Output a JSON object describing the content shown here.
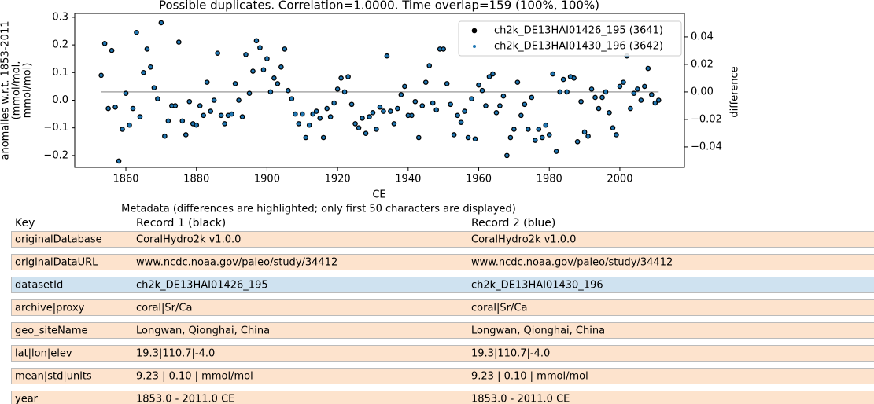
{
  "chart_data": {
    "type": "scatter",
    "title": "Possible duplicates. Correlation=1.0000. Time overlap=159 (100%, 100%)",
    "xlabel": "CE",
    "ylabel": [
      "anomalies w.r.t. 1853-2011",
      "(mmol/mol,",
      "mmol/mol)"
    ],
    "y2label": "difference",
    "xlim": [
      1845.5,
      2018.3
    ],
    "xticks": [
      1860,
      1880,
      1900,
      1920,
      1940,
      1960,
      1980,
      2000
    ],
    "ylim": [
      -0.243,
      0.314
    ],
    "yticks": [
      {
        "value": -0.2,
        "label": "−0.2"
      },
      {
        "value": -0.1,
        "label": "−0.1"
      },
      {
        "value": 0,
        "label": "0.0"
      },
      0.1,
      0.2,
      0.3
    ],
    "y2lim": [
      -0.0549,
      0.0571
    ],
    "y2ticks": [
      {
        "value": -0.04,
        "label": "−0.04"
      },
      {
        "value": -0.02,
        "label": "−0.02"
      },
      {
        "value": 0,
        "label": "0.00"
      },
      0.02,
      0.04
    ],
    "legend": "upper right",
    "x": [
      1853,
      1854,
      1855,
      1856,
      1857,
      1858,
      1859,
      1860,
      1861,
      1862,
      1863,
      1864,
      1865,
      1866,
      1867,
      1868,
      1869,
      1870,
      1871,
      1872,
      1873,
      1874,
      1875,
      1876,
      1877,
      1878,
      1879,
      1880,
      1881,
      1882,
      1883,
      1884,
      1885,
      1886,
      1887,
      1888,
      1889,
      1890,
      1891,
      1892,
      1893,
      1894,
      1895,
      1896,
      1897,
      1898,
      1899,
      1900,
      1901,
      1902,
      1903,
      1904,
      1905,
      1906,
      1907,
      1908,
      1909,
      1910,
      1911,
      1912,
      1913,
      1914,
      1915,
      1916,
      1917,
      1918,
      1919,
      1920,
      1921,
      1922,
      1923,
      1924,
      1925,
      1926,
      1927,
      1928,
      1929,
      1930,
      1931,
      1932,
      1933,
      1934,
      1935,
      1936,
      1937,
      1938,
      1939,
      1940,
      1941,
      1942,
      1943,
      1944,
      1945,
      1946,
      1947,
      1948,
      1949,
      1950,
      1951,
      1952,
      1953,
      1954,
      1955,
      1956,
      1957,
      1958,
      1959,
      1960,
      1961,
      1962,
      1963,
      1964,
      1965,
      1966,
      1967,
      1968,
      1969,
      1970,
      1971,
      1972,
      1973,
      1974,
      1975,
      1976,
      1977,
      1978,
      1979,
      1980,
      1981,
      1982,
      1983,
      1984,
      1985,
      1986,
      1987,
      1988,
      1989,
      1990,
      1991,
      1992,
      1993,
      1994,
      1995,
      1996,
      1997,
      1998,
      1999,
      2000,
      2001,
      2002,
      2003,
      2004,
      2005,
      2006,
      2007,
      2008,
      2009,
      2010,
      2011
    ],
    "series": [
      {
        "name": "ch2k_DE13HAI01426_195 (3641)",
        "color": "#000000",
        "values": [
          0.09,
          0.205,
          -0.03,
          0.18,
          -0.025,
          -0.22,
          -0.105,
          0.025,
          -0.09,
          -0.03,
          0.245,
          -0.06,
          0.1,
          0.185,
          0.12,
          0.045,
          0.005,
          0.28,
          -0.13,
          -0.075,
          -0.02,
          -0.02,
          0.21,
          -0.075,
          -0.125,
          -0.005,
          -0.085,
          -0.09,
          -0.02,
          -0.055,
          0.065,
          -0.04,
          0.0,
          0.17,
          -0.055,
          -0.085,
          -0.055,
          -0.05,
          0.06,
          0.0,
          -0.06,
          0.165,
          0.025,
          0.105,
          0.215,
          0.19,
          0.11,
          0.15,
          0.03,
          0.08,
          0.06,
          0.12,
          0.185,
          0.035,
          0.005,
          -0.05,
          -0.085,
          -0.05,
          -0.135,
          -0.09,
          -0.05,
          -0.04,
          -0.065,
          -0.135,
          -0.03,
          -0.06,
          -0.01,
          0.04,
          0.08,
          0.03,
          0.085,
          -0.015,
          -0.085,
          -0.1,
          -0.065,
          -0.12,
          -0.06,
          -0.045,
          -0.105,
          -0.025,
          -0.04,
          0.16,
          -0.04,
          -0.085,
          -0.03,
          0.02,
          0.05,
          -0.055,
          -0.055,
          -0.005,
          -0.135,
          -0.02,
          0.065,
          0.125,
          -0.01,
          -0.035,
          0.185,
          0.185,
          0.06,
          -0.015,
          -0.125,
          -0.055,
          -0.08,
          -0.04,
          -0.135,
          0.005,
          -0.14,
          0.055,
          0.035,
          -0.02,
          0.085,
          0.095,
          -0.045,
          -0.02,
          0.015,
          -0.2,
          -0.135,
          -0.105,
          0.065,
          -0.055,
          -0.015,
          -0.105,
          0.01,
          -0.145,
          -0.105,
          -0.135,
          -0.09,
          -0.125,
          0.095,
          -0.185,
          0.03,
          0.075,
          0.03,
          0.085,
          0.08,
          -0.15,
          -0.005,
          -0.115,
          -0.13,
          0.04,
          0.01,
          -0.03,
          0.01,
          0.03,
          -0.045,
          -0.1,
          -0.125,
          0.05,
          0.065,
          0.16,
          -0.03,
          0.025,
          0.04,
          0.0,
          0.05,
          0.115,
          0.02,
          -0.01,
          0.0
        ]
      },
      {
        "name": "ch2k_DE13HAI01430_196 (3642)",
        "color": "#1f77b4",
        "values": [
          0.09,
          0.205,
          -0.03,
          0.18,
          -0.025,
          -0.22,
          -0.105,
          0.025,
          -0.09,
          -0.03,
          0.245,
          -0.06,
          0.1,
          0.185,
          0.12,
          0.045,
          0.005,
          0.28,
          -0.13,
          -0.075,
          -0.02,
          -0.02,
          0.21,
          -0.075,
          -0.125,
          -0.005,
          -0.085,
          -0.09,
          -0.02,
          -0.055,
          0.065,
          -0.04,
          0.0,
          0.17,
          -0.055,
          -0.085,
          -0.055,
          -0.05,
          0.06,
          0.0,
          -0.06,
          0.165,
          0.025,
          0.105,
          0.215,
          0.19,
          0.11,
          0.15,
          0.03,
          0.08,
          0.06,
          0.12,
          0.185,
          0.035,
          0.005,
          -0.05,
          -0.085,
          -0.05,
          -0.135,
          -0.09,
          -0.05,
          -0.04,
          -0.065,
          -0.135,
          -0.03,
          -0.06,
          -0.01,
          0.04,
          0.08,
          0.03,
          0.085,
          -0.015,
          -0.085,
          -0.1,
          -0.065,
          -0.12,
          -0.06,
          -0.045,
          -0.105,
          -0.025,
          -0.04,
          0.16,
          -0.04,
          -0.085,
          -0.03,
          0.02,
          0.05,
          -0.055,
          -0.055,
          -0.005,
          -0.135,
          -0.02,
          0.065,
          0.125,
          -0.01,
          -0.035,
          0.185,
          0.185,
          0.06,
          -0.015,
          -0.125,
          -0.055,
          -0.08,
          -0.04,
          -0.135,
          0.005,
          -0.14,
          0.055,
          0.035,
          -0.02,
          0.085,
          0.095,
          -0.045,
          -0.02,
          0.015,
          -0.2,
          -0.135,
          -0.105,
          0.065,
          -0.055,
          -0.015,
          -0.105,
          0.01,
          -0.145,
          -0.105,
          -0.135,
          -0.09,
          -0.125,
          0.095,
          -0.185,
          0.03,
          0.075,
          0.03,
          0.085,
          0.08,
          -0.15,
          -0.005,
          -0.115,
          -0.13,
          0.04,
          0.01,
          -0.03,
          0.01,
          0.03,
          -0.045,
          -0.1,
          -0.125,
          0.05,
          0.065,
          0.16,
          -0.03,
          0.025,
          0.04,
          0.0,
          0.05,
          0.115,
          0.02,
          -0.01,
          0.0
        ]
      },
      {
        "color": "#aaaaaa",
        "axis": "y2",
        "values": [
          0,
          0,
          0,
          0,
          0,
          0,
          0,
          0,
          0,
          0,
          0,
          0,
          0,
          0,
          0,
          0,
          0,
          0,
          0,
          0,
          0,
          0,
          0,
          0,
          0,
          0,
          0,
          0,
          0,
          0,
          0,
          0,
          0,
          0,
          0,
          0,
          0,
          0,
          0,
          0,
          0,
          0,
          0,
          0,
          0,
          0,
          0,
          0,
          0,
          0,
          0,
          0,
          0,
          0,
          0,
          0,
          0,
          0,
          0,
          0,
          0,
          0,
          0,
          0,
          0,
          0,
          0,
          0,
          0,
          0,
          0,
          0,
          0,
          0,
          0,
          0,
          0,
          0,
          0,
          0,
          0,
          0,
          0,
          0,
          0,
          0,
          0,
          0,
          0,
          0,
          0,
          0,
          0,
          0,
          0,
          0,
          0,
          0,
          0,
          0,
          0,
          0,
          0,
          0,
          0,
          0,
          0,
          0,
          0,
          0,
          0,
          0,
          0,
          0,
          0,
          0,
          0,
          0,
          0,
          0,
          0,
          0,
          0,
          0,
          0,
          0,
          0,
          0,
          0,
          0,
          0,
          0,
          0,
          0,
          0,
          0,
          0,
          0,
          0,
          0,
          0,
          0,
          0,
          0,
          0,
          0,
          0,
          0,
          0,
          0,
          0,
          0,
          0,
          0,
          0,
          0,
          0,
          0,
          0
        ]
      }
    ]
  },
  "table": {
    "caption": "Metadata (differences are highlighted; only first 50 characters are displayed)",
    "header": [
      "Key",
      "Record 1 (black)",
      "Record 2 (blue)"
    ],
    "colors": {
      "same": "#fde3cd",
      "different": "#cfe2f0"
    },
    "rows": [
      [
        "originalDatabase",
        "CoralHydro2k v1.0.0",
        "CoralHydro2k v1.0.0"
      ],
      [
        "originalDataURL",
        "www.ncdc.noaa.gov/paleo/study/34412",
        "www.ncdc.noaa.gov/paleo/study/34412"
      ],
      [
        "datasetId",
        "ch2k_DE13HAI01426_195",
        "ch2k_DE13HAI01430_196"
      ],
      [
        "archive|proxy",
        "coral|Sr/Ca",
        "coral|Sr/Ca"
      ],
      [
        "geo_siteName",
        "Longwan, Qionghai, China",
        "Longwan, Qionghai, China"
      ],
      [
        "lat|lon|elev",
        "19.3|110.7|-4.0",
        "19.3|110.7|-4.0"
      ],
      [
        "mean|std|units",
        "9.23 | 0.10 | mmol/mol",
        "9.23 | 0.10 | mmol/mol"
      ],
      [
        "year",
        "1853.0 - 2011.0 CE",
        "1853.0 - 2011.0 CE"
      ]
    ]
  }
}
